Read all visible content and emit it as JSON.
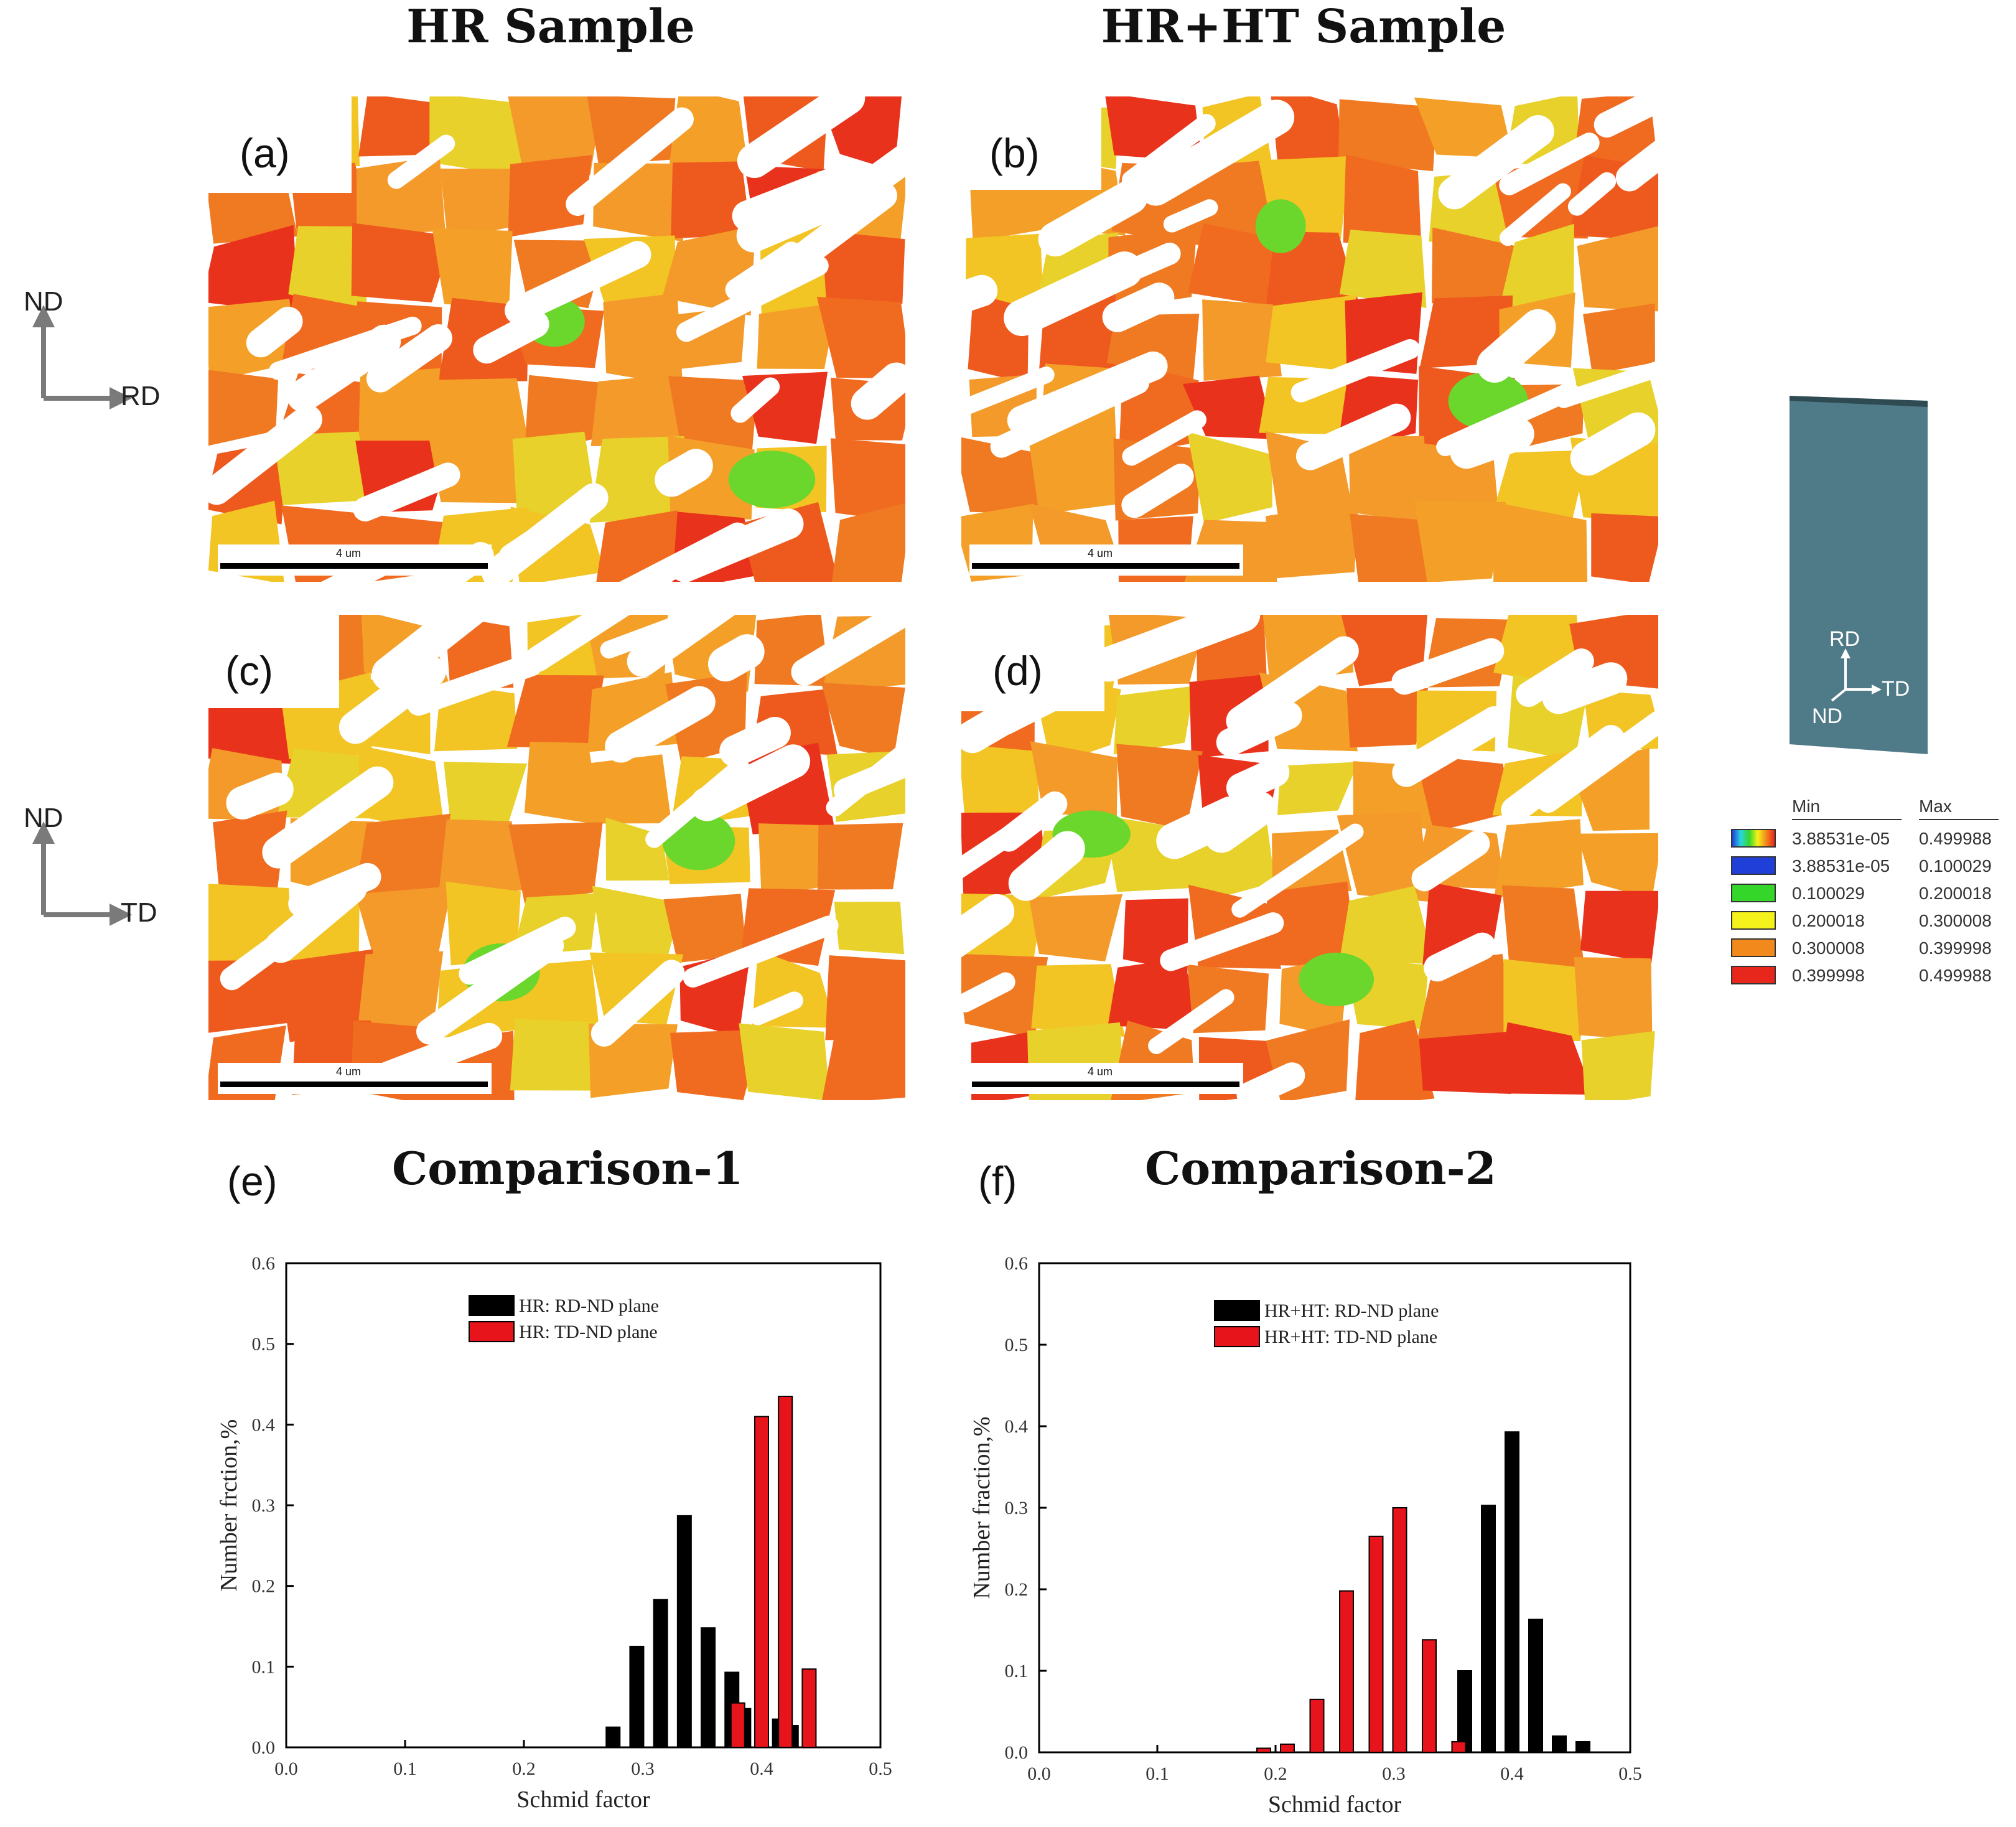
{
  "titles": {
    "hr": "HR Sample",
    "hrht": "HR+HT Sample"
  },
  "panels": {
    "a": {
      "label": "(a)",
      "scale": "4 um"
    },
    "b": {
      "label": "(b)",
      "scale": "4 um"
    },
    "c": {
      "label": "(c)",
      "scale": "4 um"
    },
    "d": {
      "label": "(d)",
      "scale": "4 um"
    },
    "e": {
      "label": "(e)"
    },
    "f": {
      "label": "(f)"
    }
  },
  "axes_ind": {
    "top": {
      "up": "ND",
      "right": "RD"
    },
    "bottom": {
      "up": "ND",
      "right": "TD"
    }
  },
  "specimen": {
    "rd": "RD",
    "td": "TD",
    "nd": "ND",
    "color": "#4f7a87"
  },
  "legend": {
    "min_header": "Min",
    "max_header": "Max",
    "rows": [
      {
        "swatch": "gradient",
        "min": "3.88531e-05",
        "max": "0.499988"
      },
      {
        "swatch": "#1f3fd8",
        "min": "3.88531e-05",
        "max": "0.100029"
      },
      {
        "swatch": "#35d62a",
        "min": "0.100029",
        "max": "0.200018"
      },
      {
        "swatch": "#f4f21a",
        "min": "0.200018",
        "max": "0.300008"
      },
      {
        "swatch": "#f2891c",
        "min": "0.300008",
        "max": "0.399998"
      },
      {
        "swatch": "#e8271c",
        "min": "0.399998",
        "max": "0.499988"
      }
    ]
  },
  "colors": {
    "black": "#000000",
    "red": "#e8141c",
    "map_orange": "#f07a22",
    "map_red": "#e9321c",
    "map_yellow": "#f2c424",
    "map_green": "#6bd62c"
  },
  "chart_data": [
    {
      "type": "bar",
      "title": "Comparison-1",
      "xlabel": "Schmid factor",
      "ylabel": "Number frction,%",
      "xlim": [
        0.0,
        0.5
      ],
      "ylim": [
        0.0,
        0.6
      ],
      "xticks": [
        "0.0",
        "0.1",
        "0.2",
        "0.3",
        "0.4",
        "0.5"
      ],
      "yticks": [
        "0.0",
        "0.1",
        "0.2",
        "0.3",
        "0.4",
        "0.5",
        "0.6"
      ],
      "legend_position": "top-center",
      "series": [
        {
          "name": "HR: RD-ND plane",
          "color": "#000000",
          "x": [
            0.275,
            0.295,
            0.315,
            0.335,
            0.355,
            0.375,
            0.385,
            0.415,
            0.425
          ],
          "values": [
            0.025,
            0.125,
            0.183,
            0.287,
            0.148,
            0.093,
            0.048,
            0.035,
            0.027
          ]
        },
        {
          "name": "HR: TD-ND plane",
          "color": "#e8141c",
          "x": [
            0.38,
            0.4,
            0.42,
            0.44
          ],
          "values": [
            0.055,
            0.41,
            0.435,
            0.097
          ]
        }
      ]
    },
    {
      "type": "bar",
      "title": "Comparison-2",
      "xlabel": "Schmid factor",
      "ylabel": "Number fraction,%",
      "xlim": [
        0.0,
        0.5
      ],
      "ylim": [
        0.0,
        0.6
      ],
      "xticks": [
        "0.0",
        "0.1",
        "0.2",
        "0.3",
        "0.4",
        "0.5"
      ],
      "yticks": [
        "0.0",
        "0.1",
        "0.2",
        "0.3",
        "0.4",
        "0.5",
        "0.6"
      ],
      "legend_position": "top-center",
      "series": [
        {
          "name": "HR+HT: RD-ND plane",
          "color": "#000000",
          "x": [
            0.36,
            0.38,
            0.4,
            0.42,
            0.44,
            0.46
          ],
          "values": [
            0.1,
            0.303,
            0.393,
            0.163,
            0.02,
            0.013
          ]
        },
        {
          "name": "HR+HT: TD-ND plane",
          "color": "#e8141c",
          "x": [
            0.19,
            0.21,
            0.235,
            0.26,
            0.285,
            0.305,
            0.33,
            0.355
          ],
          "values": [
            0.005,
            0.01,
            0.065,
            0.198,
            0.265,
            0.3,
            0.138,
            0.013
          ]
        }
      ]
    }
  ]
}
